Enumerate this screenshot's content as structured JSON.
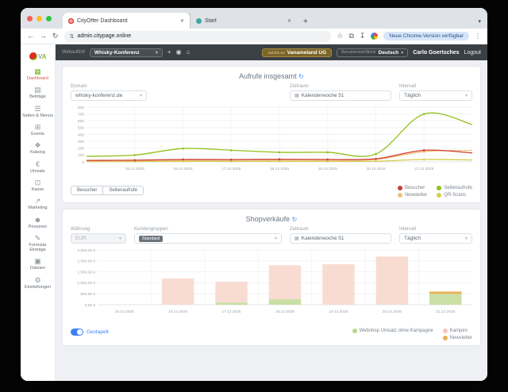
{
  "browser": {
    "tabs": [
      {
        "title": "CityOffer Dashboard"
      },
      {
        "title": "Start"
      }
    ],
    "url": "admin.citypage.online",
    "update_button": "Neue Chrome-Version verfügbar"
  },
  "app_header": {
    "site_label": "Webauftritt",
    "site_value": "Whisky-Konferenz",
    "back_button_prefix": "zurück zu",
    "back_button_name": "Vanameland UG",
    "language_label": "Benutzeroberfläche",
    "language_value": "Deutsch",
    "user_name": "Carlo Goertsches",
    "logout_label": "Logout",
    "logo_text": "VA"
  },
  "sidebar": {
    "items": [
      {
        "label": "Dashboard",
        "icon": "dashboard-grid",
        "glyph": "▦",
        "active": true
      },
      {
        "label": "Beiträge",
        "icon": "posts",
        "glyph": "▤",
        "active": false
      },
      {
        "label": "Seiten & Menüs",
        "icon": "pages-menus",
        "glyph": "☰",
        "active": false
      },
      {
        "label": "Events",
        "icon": "calendar",
        "glyph": "⊞",
        "active": false
      },
      {
        "label": "Katalog",
        "icon": "catalog-tags",
        "glyph": "❖",
        "active": false
      },
      {
        "label": "Umsatz",
        "icon": "revenue-euro",
        "glyph": "€",
        "active": false
      },
      {
        "label": "Kasse",
        "icon": "cash-register",
        "glyph": "⊡",
        "active": false
      },
      {
        "label": "Marketing",
        "icon": "marketing-chart",
        "glyph": "↗",
        "active": false
      },
      {
        "label": "Personen",
        "icon": "people",
        "glyph": "☻",
        "active": false
      },
      {
        "label": "Formular Einträge",
        "icon": "form-entries",
        "glyph": "✎",
        "active": false
      },
      {
        "label": "Dateien",
        "icon": "files",
        "glyph": "▣",
        "active": false
      },
      {
        "label": "Einstellungen",
        "icon": "gear",
        "glyph": "⚙",
        "active": false
      }
    ]
  },
  "panel1": {
    "title": "Aufrufe insgesamt",
    "controls": {
      "domain_label": "Domain",
      "domain_value": "whisky-konferenz.de",
      "zeitraum_label": "Zeitraum",
      "zeitraum_value": "Kalenderwoche 51",
      "intervall_label": "Intervall",
      "intervall_value": "Täglich"
    },
    "buttons": [
      "Besucher",
      "Seitenaufrufe"
    ],
    "legend": [
      {
        "label": "Besucher",
        "color": "#cc3e33"
      },
      {
        "label": "Seitenaufrufe",
        "color": "#94c11c"
      },
      {
        "label": "Newsletter",
        "color": "#f2bf80"
      },
      {
        "label": "QR-Scans",
        "color": "#d6cd4e"
      }
    ]
  },
  "panel2": {
    "title": "Shopverkäufe",
    "controls": {
      "waehrung_label": "Währung",
      "waehrung_value": "EUR",
      "kundengruppen_label": "Kundengruppen",
      "kundengruppen_chip": "Standard",
      "zeitraum_label": "Zeitraum",
      "zeitraum_value": "Kalenderwoche 51",
      "intervall_label": "Intervall",
      "intervall_value": "Täglich"
    },
    "toggle_label": "Gestapelt",
    "legend": [
      {
        "label": "Webshop Umsatz ohne Kampagne",
        "color": "#b9d68a"
      },
      {
        "label": "Kampen",
        "color": "#f5c6bb"
      },
      {
        "label": "Newsletter",
        "color": "#eaaf54"
      }
    ]
  },
  "chart_data": [
    {
      "type": "line",
      "title": "Aufrufe insgesamt",
      "x_labels": [
        "15.12.2025",
        "16.12.2025",
        "17.12.2025",
        "18.12.2025",
        "19.12.2025",
        "20.12.2025",
        "21.12.2025"
      ],
      "note": "9 points per series; first and last are unlabeled chart-edge points",
      "ylim": [
        0,
        800
      ],
      "yticks": [
        0,
        100,
        200,
        300,
        400,
        500,
        600,
        700,
        800
      ],
      "grid": true,
      "legend_position": "bottom-right",
      "series": [
        {
          "name": "QR-Scans",
          "color": "#d6cd4e",
          "values": [
            4,
            5,
            8,
            7,
            8,
            7,
            10,
            35,
            28
          ]
        },
        {
          "name": "Newsletter",
          "color": "#f2bf80",
          "values": [
            15,
            16,
            25,
            25,
            27,
            25,
            35,
            150,
            168
          ]
        },
        {
          "name": "Besucher",
          "color": "#cc3e33",
          "values": [
            22,
            25,
            35,
            33,
            38,
            35,
            45,
            170,
            130
          ]
        },
        {
          "name": "Seitenaufrufe",
          "color": "#94c11c",
          "values": [
            80,
            100,
            195,
            170,
            140,
            140,
            115,
            700,
            545
          ]
        }
      ]
    },
    {
      "type": "bar",
      "stacked": true,
      "title": "Shopverkäufe",
      "categories": [
        "15.12.2025",
        "16.12.2025",
        "17.12.2025",
        "18.12.2025",
        "19.12.2025",
        "20.12.2025",
        "21.12.2025"
      ],
      "ylim": [
        0,
        2500
      ],
      "ytick_labels": [
        "0,00 €",
        "500,00 €",
        "1.000,00 €",
        "1.500,00 €",
        "2.000,00 €",
        "2.500,00 €"
      ],
      "grid": true,
      "legend_position": "bottom-right",
      "series": [
        {
          "name": "Webshop Umsatz ohne Kampagne",
          "color": "#cadfa5",
          "values": [
            0,
            0,
            100,
            250,
            0,
            0,
            500
          ]
        },
        {
          "name": "Kampen",
          "color": "#f8dcd2",
          "values": [
            0,
            1200,
            950,
            1550,
            1850,
            2200,
            0
          ]
        },
        {
          "name": "Newsletter",
          "color": "#eaaf54",
          "values": [
            0,
            0,
            0,
            0,
            0,
            0,
            100
          ]
        }
      ]
    }
  ]
}
